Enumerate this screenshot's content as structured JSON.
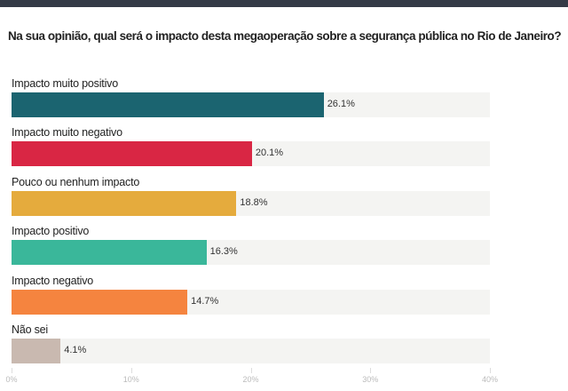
{
  "chart_data": {
    "type": "bar",
    "orientation": "horizontal",
    "title": "Na sua opinião, qual será o impacto desta megaoperação sobre a segurança pública no Rio de Janeiro?",
    "categories": [
      "Impacto muito positivo",
      "Impacto muito negativo",
      "Pouco ou nenhum impacto",
      "Impacto positivo",
      "Impacto negativo",
      "Não sei"
    ],
    "values": [
      26.1,
      20.1,
      18.8,
      16.3,
      14.7,
      4.1
    ],
    "value_labels": [
      "26.1%",
      "20.1%",
      "18.8%",
      "16.3%",
      "14.7%",
      "4.1%"
    ],
    "colors": [
      "#1b6470",
      "#d92644",
      "#e5ab3d",
      "#3ab79a",
      "#f5843f",
      "#c9b9b0"
    ],
    "xlim": [
      0,
      40
    ],
    "xticks": [
      0,
      10,
      20,
      30,
      40
    ],
    "xtick_labels": [
      "0%",
      "10%",
      "20%",
      "30%",
      "40%"
    ],
    "grid": false
  }
}
